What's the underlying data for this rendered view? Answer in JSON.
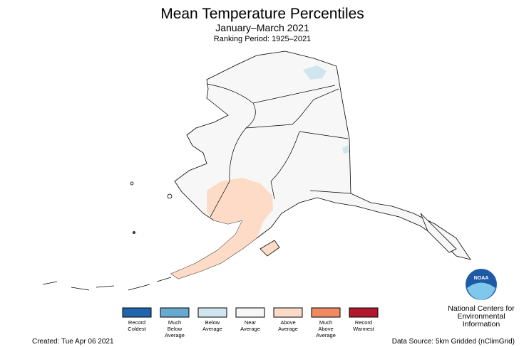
{
  "header": {
    "title": "Mean Temperature Percentiles",
    "subtitle": "January–March 2021",
    "period": "Ranking Period: 1925–2021"
  },
  "legend": {
    "items": [
      {
        "label": [
          "Record",
          "Coldest"
        ],
        "color": "#2166ac"
      },
      {
        "label": [
          "Much",
          "Below",
          "Average"
        ],
        "color": "#67a9cf"
      },
      {
        "label": [
          "Below",
          "Average"
        ],
        "color": "#d1e5f0"
      },
      {
        "label": [
          "Near",
          "Average"
        ],
        "color": "#f7f7f7"
      },
      {
        "label": [
          "Above",
          "Average"
        ],
        "color": "#fddbc7"
      },
      {
        "label": [
          "Much",
          "Above",
          "Average"
        ],
        "color": "#ef8a62"
      },
      {
        "label": [
          "Record",
          "Warmest"
        ],
        "color": "#b2182b"
      }
    ]
  },
  "logo": {
    "badge": "NOAA",
    "org": [
      "National Centers for",
      "Environmental",
      "Information"
    ]
  },
  "footer": {
    "created": "Created: Tue Apr 06 2021",
    "source": "Data Source: 5km Gridded (nClimGrid)"
  }
}
